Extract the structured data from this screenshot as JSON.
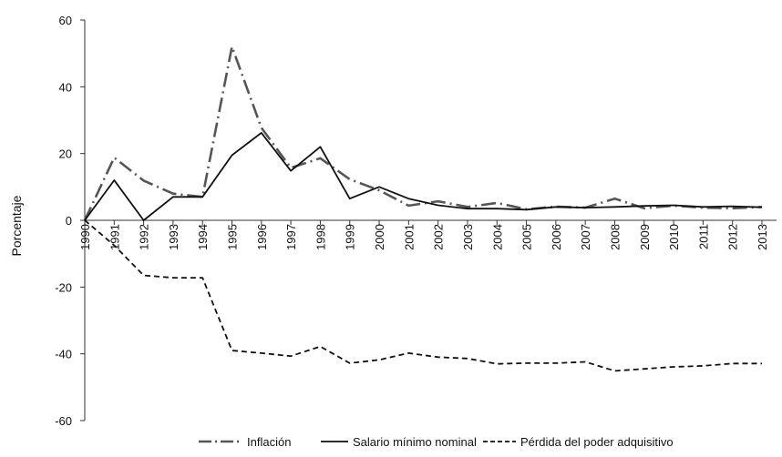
{
  "chart_data": {
    "type": "line",
    "title": "",
    "xlabel": "",
    "ylabel": "Porcentaje",
    "ylim": [
      -60,
      60
    ],
    "yticks": [
      60,
      40,
      20,
      0,
      -20,
      -40,
      -60
    ],
    "ytick_labels": [
      "60",
      "40",
      "20",
      "0",
      "-20",
      "-40",
      "-60"
    ],
    "grid": false,
    "legend_position": "bottom",
    "categories": [
      "1990",
      "1991",
      "1992",
      "1993",
      "1994",
      "1995",
      "1996",
      "1997",
      "1998",
      "1999",
      "2000",
      "2001",
      "2002",
      "2003",
      "2004",
      "2005",
      "2006",
      "2007",
      "2008",
      "2009",
      "2010",
      "2011",
      "2012",
      "2013"
    ],
    "series": [
      {
        "name": "Inflación",
        "style": "dashdot",
        "color": "#555555",
        "values": [
          0,
          18.8,
          11.9,
          8.0,
          7.0,
          52.0,
          27.7,
          15.7,
          18.6,
          12.3,
          9.0,
          4.4,
          5.7,
          4.0,
          5.2,
          3.3,
          4.1,
          3.8,
          6.5,
          3.6,
          4.4,
          3.8,
          3.6,
          4.0
        ]
      },
      {
        "name": "Salario mínimo nominal",
        "style": "solid",
        "color": "#111111",
        "values": [
          0,
          12.0,
          0.0,
          7.0,
          7.0,
          19.5,
          26.2,
          14.8,
          22.0,
          6.5,
          10.0,
          6.5,
          4.5,
          3.5,
          3.5,
          3.2,
          4.0,
          3.8,
          4.0,
          4.3,
          4.5,
          4.0,
          4.2,
          3.9
        ]
      },
      {
        "name": "Pérdida del poder adquisitivo",
        "style": "dashed",
        "color": "#111111",
        "values": [
          0,
          -7.5,
          -16.5,
          -17.2,
          -17.2,
          -39.0,
          -39.8,
          -40.7,
          -37.8,
          -42.8,
          -41.8,
          -39.8,
          -41.0,
          -41.4,
          -43.0,
          -42.8,
          -42.8,
          -42.4,
          -45.1,
          -44.5,
          -43.9,
          -43.6,
          -42.9,
          -42.9
        ]
      }
    ]
  }
}
